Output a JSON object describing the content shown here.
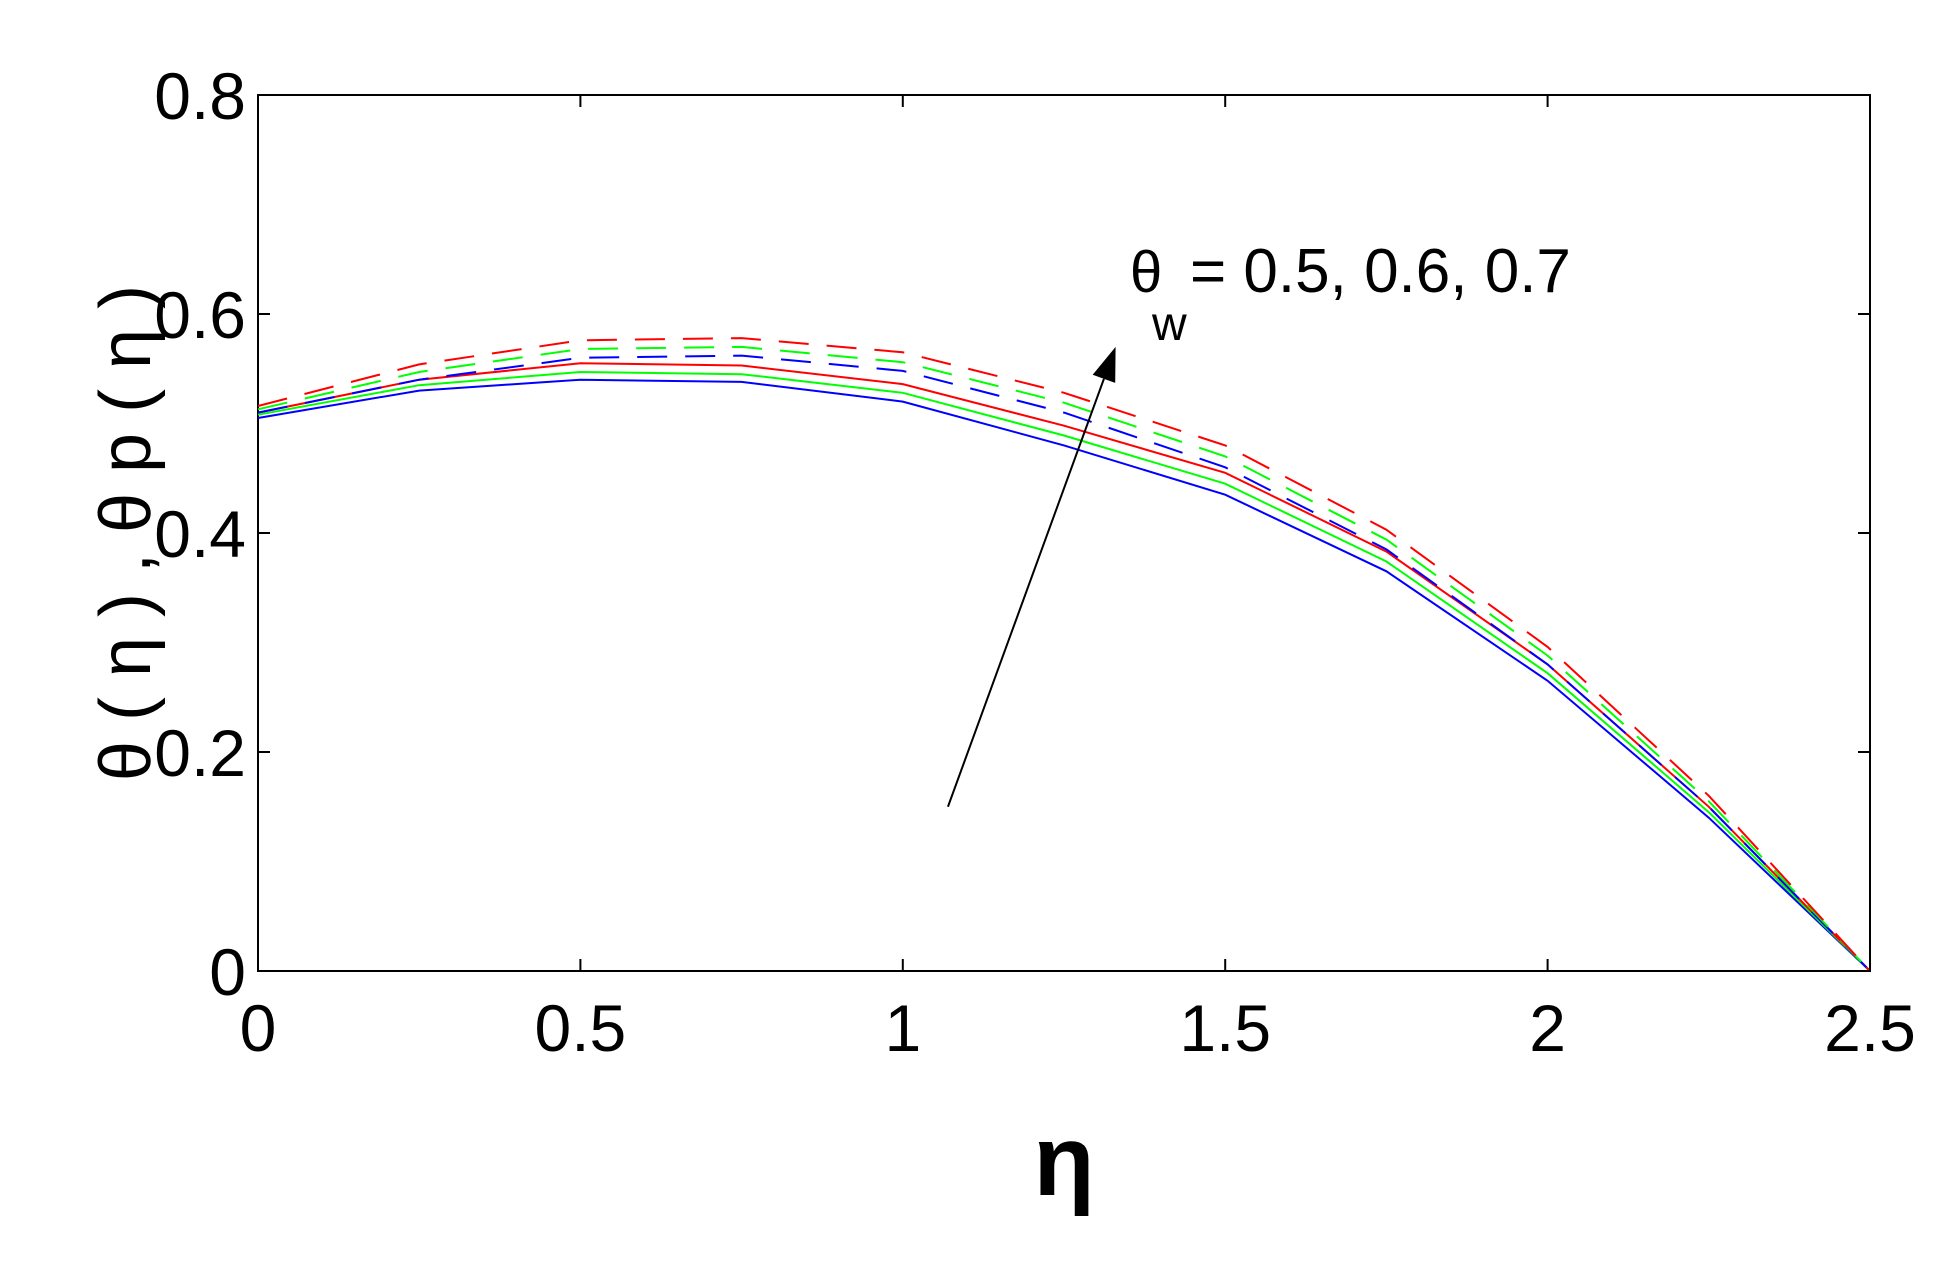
{
  "chart_data": {
    "type": "line",
    "title": "",
    "xlabel": "η",
    "ylabel": "θ ( η ) , θ p ( η )",
    "xlim": [
      0,
      2.5
    ],
    "ylim": [
      0,
      0.8
    ],
    "xticks": [
      0,
      0.5,
      1,
      1.5,
      2,
      2.5
    ],
    "xtick_labels": [
      "0",
      "0.5",
      "1",
      "1.5",
      "2",
      "2.5"
    ],
    "yticks": [
      0,
      0.2,
      0.4,
      0.6,
      0.8
    ],
    "ytick_labels": [
      "0",
      "0.2",
      "0.4",
      "0.6",
      "0.8"
    ],
    "grid": false,
    "annotation": {
      "symbol": "θ",
      "subscript": "w",
      "text": "= 0.5, 0.6, 0.7",
      "arrow_from": [
        1.07,
        0.15
      ],
      "arrow_to": [
        1.33,
        0.57
      ]
    },
    "series": [
      {
        "color": "#0000ff",
        "style": "solid",
        "x": [
          0,
          0.25,
          0.5,
          0.75,
          1.0,
          1.25,
          1.5,
          1.75,
          2.0,
          2.25,
          2.5
        ],
        "y": [
          0.505,
          0.53,
          0.54,
          0.538,
          0.52,
          0.48,
          0.435,
          0.365,
          0.265,
          0.14,
          0.0
        ]
      },
      {
        "color": "#00ff00",
        "style": "solid",
        "x": [
          0,
          0.25,
          0.5,
          0.75,
          1.0,
          1.25,
          1.5,
          1.75,
          2.0,
          2.25,
          2.5
        ],
        "y": [
          0.508,
          0.535,
          0.547,
          0.545,
          0.528,
          0.489,
          0.445,
          0.374,
          0.272,
          0.145,
          0.0
        ]
      },
      {
        "color": "#ff0000",
        "style": "solid",
        "x": [
          0,
          0.25,
          0.5,
          0.75,
          1.0,
          1.25,
          1.5,
          1.75,
          2.0,
          2.25,
          2.5
        ],
        "y": [
          0.51,
          0.54,
          0.555,
          0.553,
          0.536,
          0.498,
          0.455,
          0.383,
          0.28,
          0.15,
          0.0
        ]
      },
      {
        "color": "#0000ff",
        "style": "dashed",
        "x": [
          0,
          0.25,
          0.5,
          0.75,
          1.0,
          1.25,
          1.5,
          1.75,
          2.0,
          2.25,
          2.5
        ],
        "y": [
          0.51,
          0.54,
          0.56,
          0.562,
          0.548,
          0.51,
          0.46,
          0.385,
          0.28,
          0.15,
          0.0
        ]
      },
      {
        "color": "#00ff00",
        "style": "dashed",
        "x": [
          0,
          0.25,
          0.5,
          0.75,
          1.0,
          1.25,
          1.5,
          1.75,
          2.0,
          2.25,
          2.5
        ],
        "y": [
          0.513,
          0.547,
          0.568,
          0.57,
          0.556,
          0.519,
          0.47,
          0.394,
          0.288,
          0.155,
          0.0
        ]
      },
      {
        "color": "#ff0000",
        "style": "dashed",
        "x": [
          0,
          0.25,
          0.5,
          0.75,
          1.0,
          1.25,
          1.5,
          1.75,
          2.0,
          2.25,
          2.5
        ],
        "y": [
          0.516,
          0.554,
          0.576,
          0.578,
          0.565,
          0.528,
          0.48,
          0.403,
          0.296,
          0.16,
          0.0
        ]
      }
    ]
  }
}
